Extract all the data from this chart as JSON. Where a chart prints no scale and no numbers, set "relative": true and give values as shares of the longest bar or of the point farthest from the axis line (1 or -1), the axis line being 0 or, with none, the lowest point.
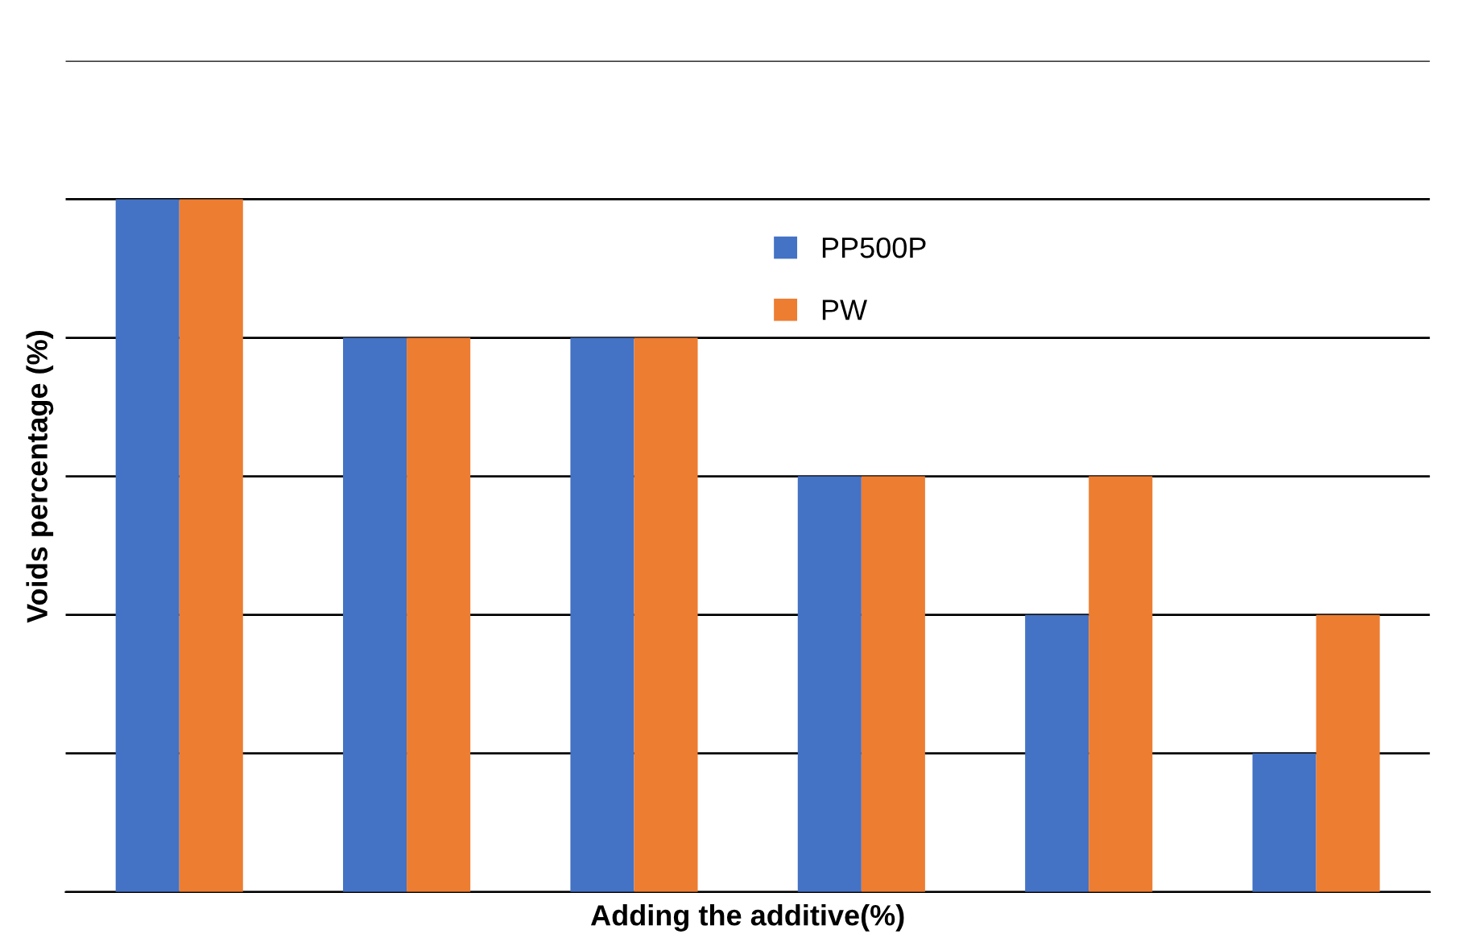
{
  "chart_data": {
    "type": "bar",
    "xlabel": "Adding the additive(%)",
    "ylabel": "Voids percentage (%)",
    "relative": true,
    "categories": [
      null,
      null,
      null,
      null,
      null,
      null
    ],
    "series": [
      {
        "name": "PP500P",
        "color": "#4472c4",
        "values": [
          1,
          0.8,
          0.8,
          0.6,
          0.4,
          0.2
        ]
      },
      {
        "name": "PW",
        "color": "#ed7d31",
        "values": [
          1,
          0.8,
          0.8,
          0.6,
          0.6,
          0.4
        ]
      }
    ],
    "grid": "y",
    "legend": "top"
  }
}
